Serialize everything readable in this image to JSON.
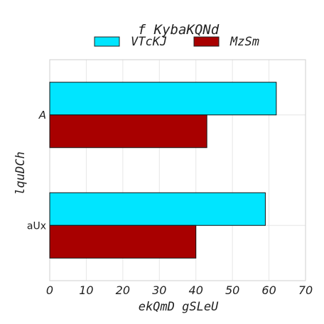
{
  "chart_data": {
    "type": "bar",
    "orientation": "horizontal",
    "title": "f KybaKQNd",
    "xlabel": "ekQmD gSLeU",
    "ylabel": "lquDCh",
    "xlim": [
      0,
      70
    ],
    "xticks": [
      "0",
      "10",
      "20",
      "30",
      "40",
      "50",
      "60",
      "70"
    ],
    "categories": [
      "A",
      "aUx"
    ],
    "series": [
      {
        "name": "VTcKJ",
        "color": "#00e5ff",
        "values": [
          62,
          59
        ]
      },
      {
        "name": "MzSm",
        "color": "#a80000",
        "values": [
          43,
          40
        ]
      }
    ],
    "grid": true,
    "legend": "top-center"
  }
}
